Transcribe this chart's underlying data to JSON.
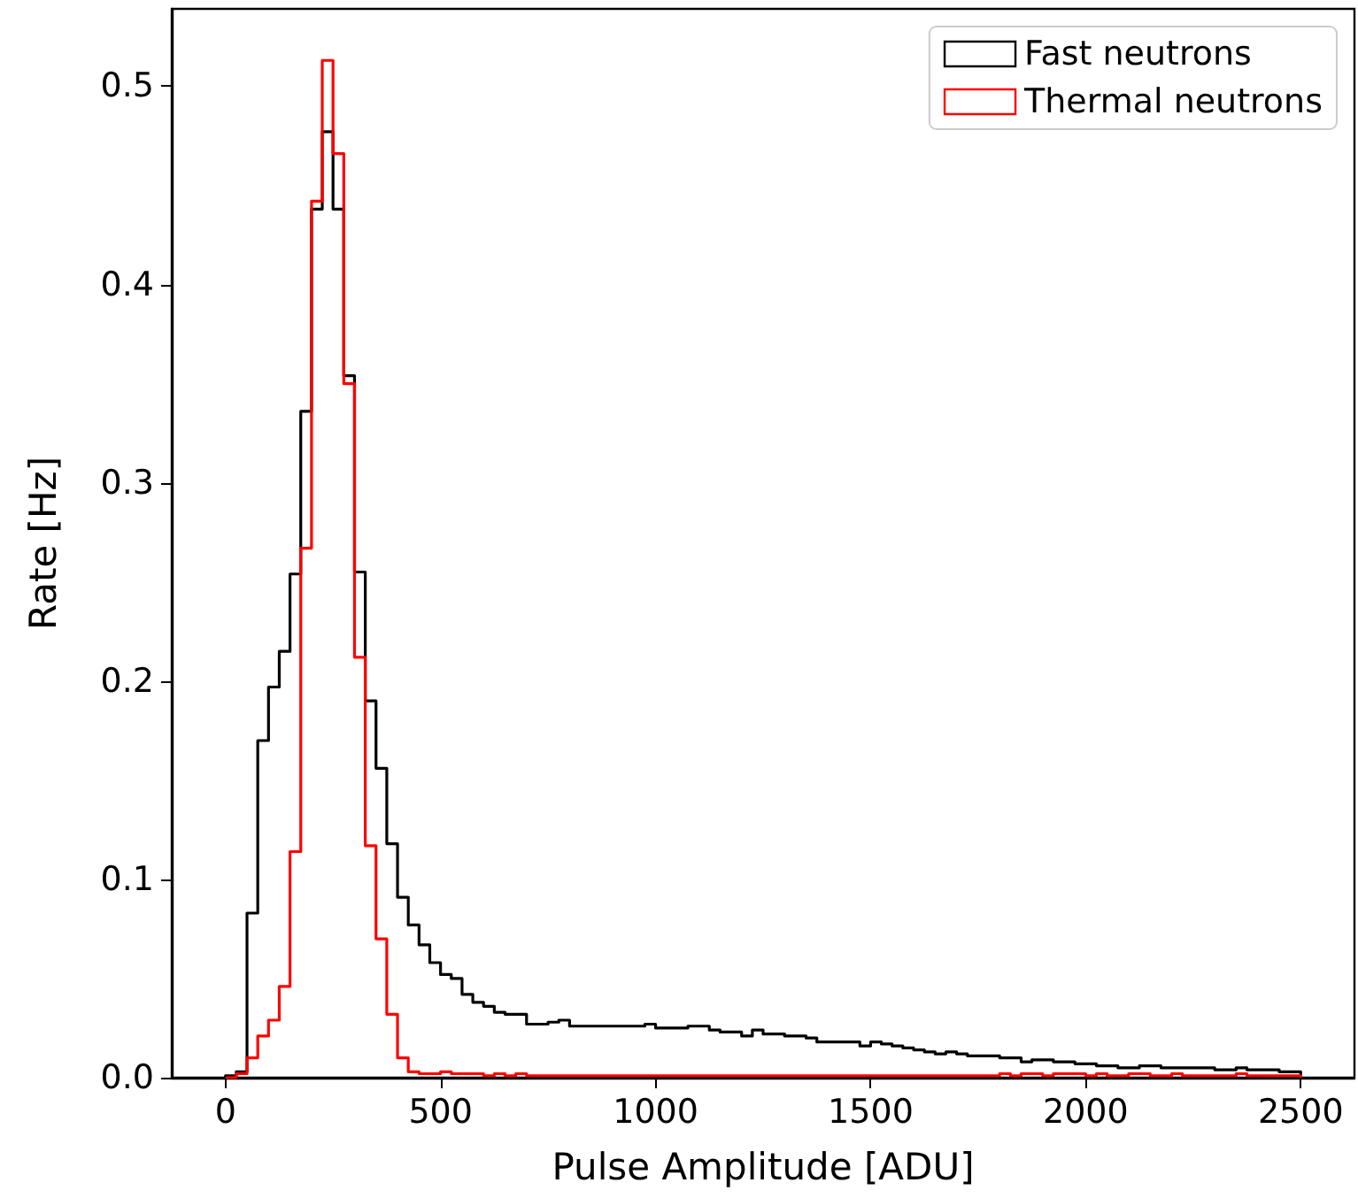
{
  "chart_data": {
    "type": "histogram",
    "xlabel": "Pulse Amplitude [ADU]",
    "ylabel": "Rate [Hz]",
    "bins": [
      0,
      25,
      50,
      75,
      100,
      125,
      150,
      175,
      200,
      225,
      250,
      275,
      300,
      325,
      350,
      375,
      400,
      425,
      450,
      475,
      500,
      525,
      550,
      575,
      600,
      625,
      650,
      675,
      700,
      725,
      750,
      775,
      800,
      825,
      850,
      875,
      900,
      925,
      950,
      975,
      1000,
      1025,
      1050,
      1075,
      1100,
      1125,
      1150,
      1175,
      1200,
      1225,
      1250,
      1275,
      1300,
      1325,
      1350,
      1375,
      1400,
      1425,
      1450,
      1475,
      1500,
      1525,
      1550,
      1575,
      1600,
      1625,
      1650,
      1675,
      1700,
      1725,
      1750,
      1775,
      1800,
      1825,
      1850,
      1875,
      1900,
      1925,
      1950,
      1975,
      2000,
      2025,
      2050,
      2075,
      2100,
      2125,
      2150,
      2175,
      2200,
      2225,
      2250,
      2275,
      2300,
      2325,
      2350,
      2375,
      2400,
      2425,
      2450,
      2475,
      2500
    ],
    "series": [
      {
        "name": "Fast neutrons",
        "color": "#000000",
        "values": [
          0.001,
          0.003,
          0.083,
          0.17,
          0.197,
          0.215,
          0.254,
          0.336,
          0.438,
          0.477,
          0.438,
          0.354,
          0.255,
          0.19,
          0.156,
          0.118,
          0.091,
          0.077,
          0.067,
          0.058,
          0.052,
          0.05,
          0.042,
          0.038,
          0.036,
          0.033,
          0.032,
          0.032,
          0.027,
          0.027,
          0.028,
          0.029,
          0.026,
          0.026,
          0.026,
          0.026,
          0.026,
          0.026,
          0.026,
          0.027,
          0.025,
          0.025,
          0.025,
          0.026,
          0.026,
          0.024,
          0.023,
          0.023,
          0.021,
          0.024,
          0.022,
          0.022,
          0.021,
          0.021,
          0.02,
          0.018,
          0.018,
          0.018,
          0.018,
          0.016,
          0.018,
          0.017,
          0.016,
          0.015,
          0.014,
          0.013,
          0.012,
          0.013,
          0.012,
          0.011,
          0.011,
          0.011,
          0.01,
          0.01,
          0.008,
          0.009,
          0.009,
          0.008,
          0.008,
          0.007,
          0.007,
          0.006,
          0.006,
          0.005,
          0.005,
          0.006,
          0.006,
          0.005,
          0.005,
          0.005,
          0.005,
          0.005,
          0.004,
          0.004,
          0.005,
          0.004,
          0.004,
          0.004,
          0.003,
          0.003
        ]
      },
      {
        "name": "Thermal neutrons",
        "color": "#ff0000",
        "values": [
          0,
          0.002,
          0.01,
          0.021,
          0.029,
          0.046,
          0.114,
          0.267,
          0.442,
          0.513,
          0.466,
          0.35,
          0.212,
          0.117,
          0.07,
          0.032,
          0.01,
          0.003,
          0.002,
          0.002,
          0.003,
          0.002,
          0.002,
          0.002,
          0.001,
          0.002,
          0.001,
          0.002,
          0.001,
          0.001,
          0.001,
          0.001,
          0.001,
          0.001,
          0.001,
          0.001,
          0.001,
          0.001,
          0.001,
          0.001,
          0.001,
          0.001,
          0.001,
          0.001,
          0.001,
          0.001,
          0.001,
          0.001,
          0.001,
          0.001,
          0.001,
          0.001,
          0.001,
          0.001,
          0.001,
          0.001,
          0.001,
          0.001,
          0.001,
          0.001,
          0.001,
          0.001,
          0.001,
          0.001,
          0.001,
          0.001,
          0.001,
          0.001,
          0.001,
          0.001,
          0.001,
          0.001,
          0.002,
          0.001,
          0.002,
          0.002,
          0.001,
          0.002,
          0.002,
          0.002,
          0.001,
          0.002,
          0.001,
          0.001,
          0.002,
          0.002,
          0.001,
          0.001,
          0.002,
          0.001,
          0.001,
          0.001,
          0.001,
          0.001,
          0.002,
          0.001,
          0.001,
          0.001,
          0.001,
          0.001
        ]
      }
    ],
    "xlim": [
      -125,
      2625
    ],
    "xticks": [
      0,
      500,
      1000,
      1500,
      2000,
      2500
    ],
    "ylim": [
      0,
      0.539
    ],
    "yticks": [
      {
        "value": 0,
        "label": "0.0"
      },
      {
        "value": 0.1,
        "label": "0.1"
      },
      {
        "value": 0.2,
        "label": "0.2"
      },
      {
        "value": 0.3,
        "label": "0.3"
      },
      {
        "value": 0.4,
        "label": "0.4"
      },
      {
        "value": 0.5,
        "label": "0.5"
      }
    ],
    "legend": "top right",
    "grid": false
  }
}
